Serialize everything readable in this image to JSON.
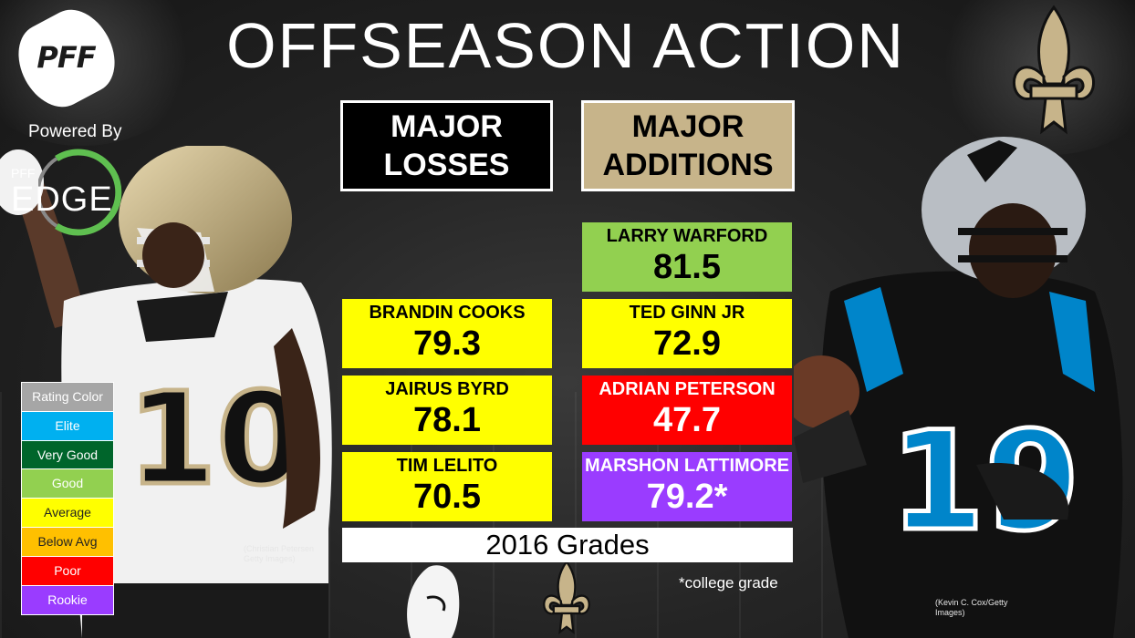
{
  "title": "OFFSEASON ACTION",
  "branding": {
    "logo_text": "PFF",
    "powered_by": "Powered By",
    "edge_small": "PFF",
    "edge_big": "EDGE"
  },
  "headers": {
    "losses_line1": "MAJOR",
    "losses_line2": "LOSSES",
    "additions_line1": "MAJOR",
    "additions_line2": "ADDITIONS"
  },
  "losses": [
    {
      "name": "BRANDIN COOKS",
      "grade": "79.3",
      "color": "#ffff00"
    },
    {
      "name": "JAIRUS BYRD",
      "grade": "78.1",
      "color": "#ffff00"
    },
    {
      "name": "TIM LELITO",
      "grade": "70.5",
      "color": "#ffff00"
    }
  ],
  "additions": [
    {
      "name": "LARRY WARFORD",
      "grade": "81.5",
      "color": "#92d050"
    },
    {
      "name": "TED GINN JR",
      "grade": "72.9",
      "color": "#ffff00"
    },
    {
      "name": "ADRIAN PETERSON",
      "grade": "47.7",
      "color": "#ff0000"
    },
    {
      "name": "MARSHON LATTIMORE",
      "grade": "79.2*",
      "color": "#9a3cff"
    }
  ],
  "grades_label": "2016 Grades",
  "college_note": "*college grade",
  "credits": {
    "left_line1": "(Christian Petersen",
    "left_line2": "Getty Images)",
    "right_line1": "(Kevin C. Cox/Getty",
    "right_line2": "Images)"
  },
  "legend": [
    {
      "label": "Rating Color",
      "color": "#a6a6a6",
      "text_color": "#ffffff"
    },
    {
      "label": "Elite",
      "color": "#00b0f0",
      "text_color": "#ffffff"
    },
    {
      "label": "Very Good",
      "color": "#00652b",
      "text_color": "#ffffff"
    },
    {
      "label": "Good",
      "color": "#92d050",
      "text_color": "#ffffff"
    },
    {
      "label": "Average",
      "color": "#ffff00",
      "text_color": "#222222"
    },
    {
      "label": "Below Avg",
      "color": "#ffc000",
      "text_color": "#222222"
    },
    {
      "label": "Poor",
      "color": "#ff0000",
      "text_color": "#ffffff"
    },
    {
      "label": "Rookie",
      "color": "#9a3cff",
      "text_color": "#ffffff"
    }
  ],
  "jerseys": {
    "left_number": "10",
    "right_number": "19"
  },
  "colors": {
    "saints_gold": "#c7b48a",
    "panthers_blue": "#0085ca",
    "edge_green": "#5fbf50"
  },
  "icons": [
    "pff-logo",
    "edge-ring-icon",
    "saints-fleur-de-lis-icon"
  ]
}
